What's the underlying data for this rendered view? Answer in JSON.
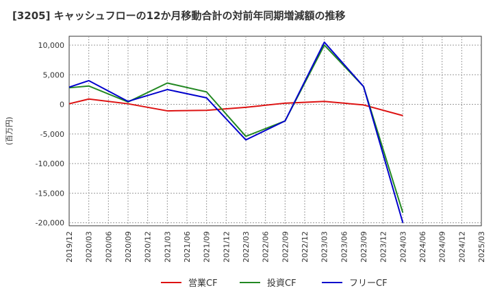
{
  "chart_data": {
    "type": "line",
    "title": "[3205]  キャッシュフローの12か月移動合計の対前年同期増減額の推移",
    "ylabel": "(百万円)",
    "xlabel": "",
    "ylim": [
      -20500,
      11500
    ],
    "yticks": [
      10000,
      5000,
      0,
      -5000,
      -10000,
      -15000,
      -20000
    ],
    "ytick_labels": [
      "10,000",
      "5,000",
      "0",
      "-5,000",
      "-10,000",
      "-15,000",
      "-20,000"
    ],
    "categories": [
      "2019/12",
      "2020/03",
      "2020/06",
      "2020/09",
      "2020/12",
      "2021/03",
      "2021/06",
      "2021/09",
      "2021/12",
      "2022/03",
      "2022/06",
      "2022/09",
      "2022/12",
      "2023/03",
      "2023/06",
      "2023/09",
      "2023/12",
      "2024/03",
      "2024/06",
      "2024/09",
      "2024/12",
      "2025/03"
    ],
    "grid": true,
    "legend_position": "bottom",
    "series": [
      {
        "name": "営業CF",
        "color": "#dd1111",
        "values": [
          100,
          900,
          null,
          100,
          null,
          -1100,
          null,
          -1000,
          null,
          -500,
          null,
          200,
          null,
          500,
          null,
          -100,
          null,
          -1900,
          null,
          null,
          null,
          null
        ]
      },
      {
        "name": "投資CF",
        "color": "#228822",
        "values": [
          2800,
          3100,
          null,
          400,
          null,
          3600,
          null,
          2100,
          null,
          -5400,
          null,
          -2800,
          null,
          10000,
          null,
          3000,
          null,
          -18300,
          null,
          null,
          null,
          null
        ]
      },
      {
        "name": "フリーCF",
        "color": "#0000cc",
        "values": [
          2900,
          4000,
          null,
          500,
          null,
          2500,
          null,
          1100,
          null,
          -6000,
          null,
          -2800,
          null,
          10500,
          null,
          3000,
          null,
          -20000,
          null,
          null,
          null,
          null
        ]
      }
    ]
  }
}
